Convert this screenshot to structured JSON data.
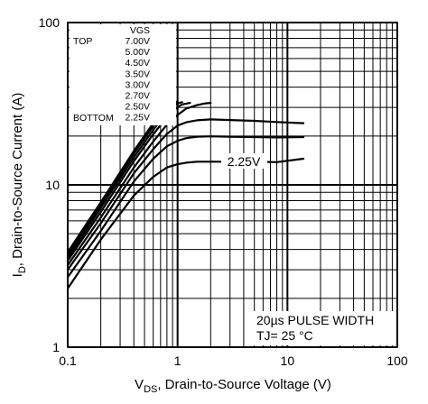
{
  "chart_data": {
    "type": "line",
    "x_scale": "log",
    "y_scale": "log",
    "xlim": [
      0.1,
      100
    ],
    "ylim": [
      1,
      100
    ],
    "grid": true,
    "x_ticks": [
      {
        "value": 0.1,
        "label": "0.1"
      },
      {
        "value": 1,
        "label": "1"
      },
      {
        "value": 10,
        "label": "10"
      },
      {
        "value": 100,
        "label": "100"
      }
    ],
    "y_ticks": [
      {
        "value": 1,
        "label": "1"
      },
      {
        "value": 10,
        "label": "10"
      },
      {
        "value": 100,
        "label": "100"
      }
    ],
    "xlabel": {
      "main": "V",
      "sub": "DS",
      "rest": ", Drain-to-Source Voltage (V)"
    },
    "ylabel": {
      "main": "I",
      "sub": "D",
      "rest": ",  Drain-to-Source Current (A)"
    },
    "legend": {
      "top_label": "TOP",
      "bottom_label": "BOTTOM",
      "header": "VGS",
      "entries": [
        "7.00V",
        "5.00V",
        "4.50V",
        "3.50V",
        "3.00V",
        "2.70V",
        "2.50V",
        "2.25V"
      ]
    },
    "curve_annotation": "2.25V",
    "notes": [
      "20µs PULSE WIDTH",
      "TJ= 25 °C"
    ],
    "series": [
      {
        "x": [
          0.1,
          0.2,
          0.4,
          0.6,
          0.8,
          1.0,
          1.2,
          1.5,
          2,
          3,
          5,
          8,
          14
        ],
        "y": [
          2.3,
          4.6,
          8.6,
          11.2,
          12.8,
          13.4,
          13.7,
          13.9,
          13.9,
          13.9,
          13.9,
          13.8,
          14.5
        ]
      },
      {
        "x": [
          0.1,
          0.2,
          0.4,
          0.6,
          0.8,
          1.0,
          1.2,
          1.5,
          2,
          3,
          5,
          8,
          14
        ],
        "y": [
          2.7,
          5.2,
          10.5,
          14.5,
          17.3,
          18.7,
          19.4,
          19.8,
          19.9,
          19.8,
          19.7,
          19.6,
          19.7
        ]
      },
      {
        "x": [
          0.1,
          0.2,
          0.4,
          0.6,
          0.8,
          1.0,
          1.2,
          1.5,
          2,
          3,
          5,
          8,
          14
        ],
        "y": [
          3.0,
          5.8,
          11.8,
          16.6,
          20.6,
          23.2,
          24.3,
          25.0,
          25.3,
          25.1,
          24.8,
          24.4,
          24.0
        ]
      },
      {
        "x": [
          0.1,
          0.2,
          0.4,
          0.6,
          0.8,
          1.0,
          1.2,
          1.5,
          1.8,
          2.0
        ],
        "y": [
          3.2,
          6.3,
          12.8,
          18.5,
          23.5,
          27.0,
          29.5,
          31.0,
          31.8,
          32.0
        ]
      },
      {
        "x": [
          0.1,
          0.2,
          0.4,
          0.6,
          0.8,
          1.0,
          1.1,
          1.3
        ],
        "y": [
          3.4,
          6.8,
          14.0,
          20.5,
          26.2,
          30.2,
          31.3,
          32.0
        ]
      },
      {
        "x": [
          0.1,
          0.2,
          0.4,
          0.6,
          0.8,
          1.0,
          1.1
        ],
        "y": [
          3.55,
          7.2,
          14.8,
          21.8,
          28.0,
          31.8,
          32.3
        ]
      },
      {
        "x": [
          0.1,
          0.2,
          0.4,
          0.6,
          0.8,
          0.9,
          1.0
        ],
        "y": [
          3.7,
          7.5,
          15.6,
          23.0,
          29.8,
          32.0,
          32.5
        ]
      },
      {
        "x": [
          0.1,
          0.2,
          0.4,
          0.6,
          0.8,
          0.9,
          1.0
        ],
        "y": [
          3.85,
          7.8,
          16.2,
          24.0,
          31.0,
          32.5,
          32.5
        ]
      }
    ]
  }
}
